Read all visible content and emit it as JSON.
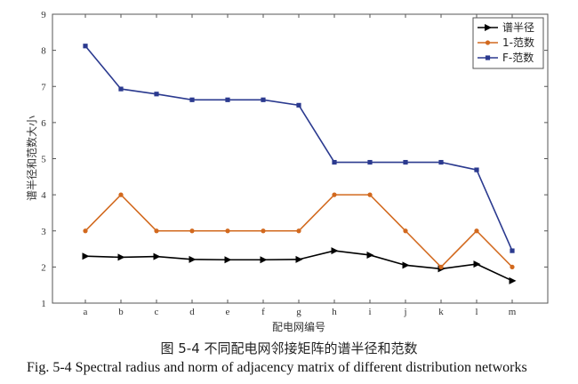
{
  "chart_data": {
    "type": "line",
    "categories": [
      "a",
      "b",
      "c",
      "d",
      "e",
      "f",
      "g",
      "h",
      "i",
      "j",
      "k",
      "l",
      "m"
    ],
    "series": [
      {
        "name": "谱半径",
        "color": "#000000",
        "marker": "triangle-right",
        "values": [
          2.3,
          2.27,
          2.29,
          2.21,
          2.2,
          2.2,
          2.21,
          2.45,
          2.33,
          2.05,
          1.95,
          2.08,
          1.62
        ]
      },
      {
        "name": "1-范数",
        "color": "#d2691e",
        "marker": "circle",
        "values": [
          3,
          4,
          3,
          3,
          3,
          3,
          3,
          4,
          4,
          3,
          2,
          3,
          2
        ]
      },
      {
        "name": "F-范数",
        "color": "#2b3a8f",
        "marker": "square",
        "values": [
          8.12,
          6.93,
          6.79,
          6.63,
          6.63,
          6.63,
          6.48,
          4.9,
          4.9,
          4.9,
          4.9,
          4.69,
          2.45
        ]
      }
    ],
    "xlabel": "配电网编号",
    "ylabel": "谱半径和范数大小",
    "ylim": [
      1,
      9
    ],
    "yticks": [
      1,
      2,
      3,
      4,
      5,
      6,
      7,
      8,
      9
    ],
    "grid": false,
    "legend_position": "top-right"
  },
  "caption": {
    "cn": "图 5-4  不同配电网邻接矩阵的谱半径和范数",
    "en": "Fig. 5-4 Spectral radius and norm of adjacency matrix of different distribution networks"
  }
}
